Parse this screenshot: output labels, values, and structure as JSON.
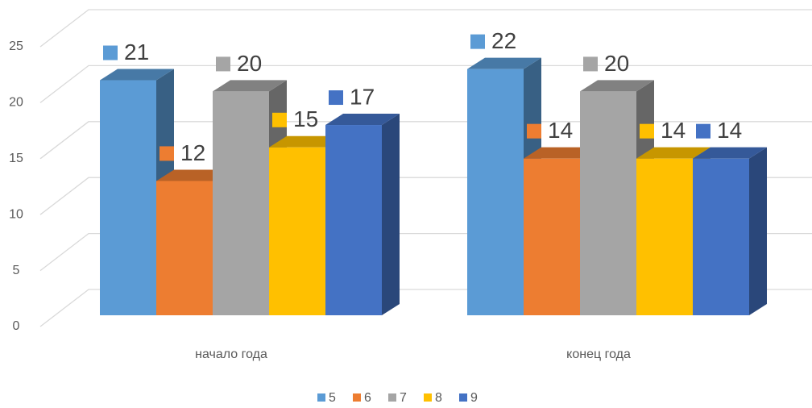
{
  "chart_data": {
    "type": "bar3d",
    "categories": [
      "начало года",
      "конец года"
    ],
    "series": [
      {
        "name": "5",
        "color": "#5b9bd5",
        "values": [
          21,
          22
        ]
      },
      {
        "name": "6",
        "color": "#ed7d31",
        "values": [
          12,
          14
        ]
      },
      {
        "name": "7",
        "color": "#a5a5a5",
        "values": [
          20,
          20
        ]
      },
      {
        "name": "8",
        "color": "#ffc000",
        "values": [
          15,
          14
        ]
      },
      {
        "name": "9",
        "color": "#4472c4",
        "values": [
          17,
          14
        ]
      }
    ],
    "ylim": [
      0,
      25
    ],
    "yticks": [
      0,
      5,
      10,
      15,
      20,
      25
    ],
    "grid": true,
    "legend": "bottom"
  }
}
